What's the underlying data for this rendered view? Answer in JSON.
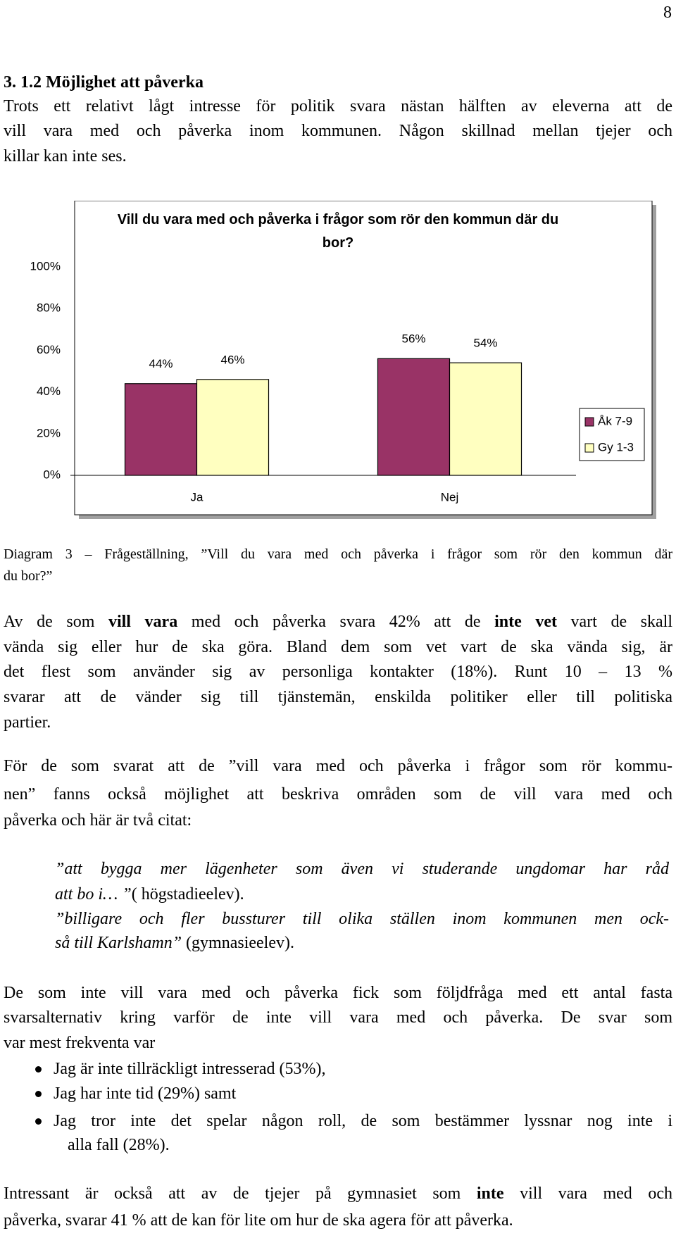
{
  "page_number": "8",
  "heading": "3. 1.2 Möjlighet att påverka",
  "intro": [
    "Trots ett relativt lågt intresse för politik svara nästan hälften av eleverna att de",
    "vill vara med och påverka inom kommunen. Någon skillnad mellan tjejer och",
    "killar kan inte ses."
  ],
  "chart_data": {
    "type": "bar",
    "title": "Vill du vara med och påverka i frågor som rör den kommun där du bor?",
    "categories": [
      "Ja",
      "Nej"
    ],
    "series": [
      {
        "name": "Åk 7-9",
        "color": "#993366",
        "values": [
          44,
          56
        ],
        "value_labels": [
          "44%",
          "56%"
        ]
      },
      {
        "name": "Gy 1-3",
        "color": "#ffffc0",
        "values": [
          46,
          54
        ],
        "value_labels": [
          "46%",
          "54%"
        ]
      }
    ],
    "ylim": [
      0,
      100
    ],
    "yticks": [
      {
        "value": 0,
        "label": "0%"
      },
      {
        "value": 20,
        "label": "20%"
      },
      {
        "value": 40,
        "label": "40%"
      },
      {
        "value": 60,
        "label": "60%"
      },
      {
        "value": 80,
        "label": "80%"
      },
      {
        "value": 100,
        "label": "100%"
      }
    ],
    "legend": "right"
  },
  "caption": [
    "Diagram 3 – Frågeställning, ”Vill du vara med och påverka i frågor som rör den kommun där",
    "du bor?”"
  ],
  "para2": [
    [
      "Av de som ",
      "vill vara",
      " med och påverka svara 42% att de ",
      "inte vet",
      " vart de skall"
    ],
    "vända sig eller hur de ska göra. Bland dem som vet vart de ska vända sig, är",
    "det flest som använder sig av personliga kontakter (18%). Runt 10 – 13 %",
    "svarar att de vänder sig till tjänstemän, enskilda politiker eller till politiska",
    "partier."
  ],
  "para3": [
    "För de som svarat att de ”vill vara med och påverka i frågor som rör kommu-",
    "nen” fanns också möjlighet att beskriva områden som de vill vara med och",
    "påverka och här är två citat:"
  ],
  "quotes": [
    [
      "”att bygga mer lägenheter som även vi studerande ungdomar har råd"
    ],
    [
      "att bo i… ”",
      "( högstadieelev)."
    ],
    [
      "”billigare och fler bussturer till olika ställen inom kommunen men ock-"
    ],
    [
      "så till Karlshamn”",
      " (gymnasieelev)."
    ]
  ],
  "para4": [
    "De som inte vill vara med och påverka fick som följdfråga med ett antal fasta",
    "svarsalternativ kring varför de inte vill vara med och påverka. De svar som",
    "var mest frekventa var"
  ],
  "bullets": [
    [
      "Jag är inte tillräckligt intresserad (53%),"
    ],
    [
      "Jag har inte tid (29%) samt"
    ],
    [
      "Jag tror inte det spelar någon roll, de som bestämmer lyssnar nog inte i",
      "alla fall (28%)."
    ]
  ],
  "last": [
    [
      "Intressant är också att av de tjejer på gymnasiet som ",
      "inte",
      " vill vara med och"
    ],
    "påverka, svarar 41 % att de kan för lite om hur de ska agera för att påverka."
  ]
}
